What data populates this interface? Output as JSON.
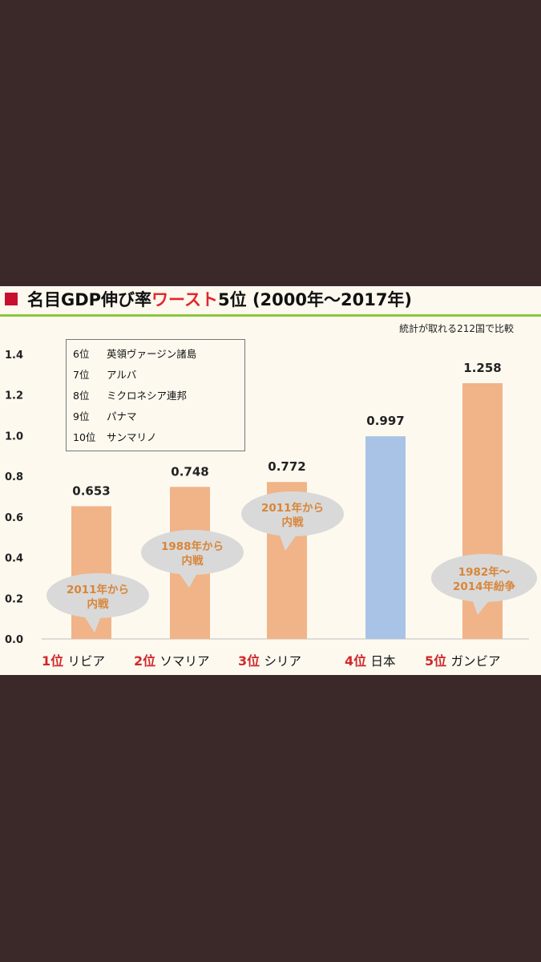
{
  "header": {
    "title_prefix": "名目GDP伸び率",
    "title_accent": "ワースト",
    "title_suffix": "5位 (2000年～2017年)",
    "note": "統計が取れる212国で比較"
  },
  "legend": {
    "items": [
      {
        "rank": "6位",
        "name": "英領ヴァージン諸島"
      },
      {
        "rank": "7位",
        "name": "アルバ"
      },
      {
        "rank": "8位",
        "name": "ミクロネシア連邦"
      },
      {
        "rank": "9位",
        "name": "パナマ"
      },
      {
        "rank": "10位",
        "name": "サンマリノ"
      }
    ]
  },
  "bubbles": [
    {
      "line1": "2011年から",
      "line2": "内戦"
    },
    {
      "line1": "1988年から",
      "line2": "内戦"
    },
    {
      "line1": "2011年から",
      "line2": "内戦"
    },
    {
      "line1": "1982年～",
      "line2": "2014年紛争"
    }
  ],
  "xlabels": [
    {
      "rank": "1位",
      "name": "リビア"
    },
    {
      "rank": "2位",
      "name": "ソマリア"
    },
    {
      "rank": "3位",
      "name": "シリア"
    },
    {
      "rank": "4位",
      "name": "日本"
    },
    {
      "rank": "5位",
      "name": "ガンビア"
    }
  ],
  "colors": {
    "bar_default": "#f0b488",
    "bar_highlight": "#a9c3e6",
    "bubble_fill": "#d9d9d9",
    "bubble_text": "#d8863a",
    "rank_red": "#d0282b",
    "title_accent": "#e3262b",
    "rule_green": "#8cc63e"
  },
  "chart_data": {
    "type": "bar",
    "title": "名目GDP伸び率ワースト5位 (2000年～2017年)",
    "categories": [
      "1位 リビア",
      "2位 ソマリア",
      "3位 シリア",
      "4位 日本",
      "5位 ガンビア"
    ],
    "values": [
      0.653,
      0.748,
      0.772,
      0.997,
      1.258
    ],
    "value_labels": [
      "0.653",
      "0.748",
      "0.772",
      "0.997",
      "1.258"
    ],
    "highlight_index": 3,
    "ylim": [
      0,
      1.4
    ],
    "yticks": [
      0,
      0.2,
      0.4,
      0.6,
      0.8,
      1.0,
      1.2,
      1.4
    ],
    "ytick_labels": [
      "0.0",
      "0.2",
      "0.4",
      "0.6",
      "0.8",
      "1.0",
      "1.2",
      "1.4"
    ],
    "grid": false,
    "legend_position": "top-left"
  }
}
